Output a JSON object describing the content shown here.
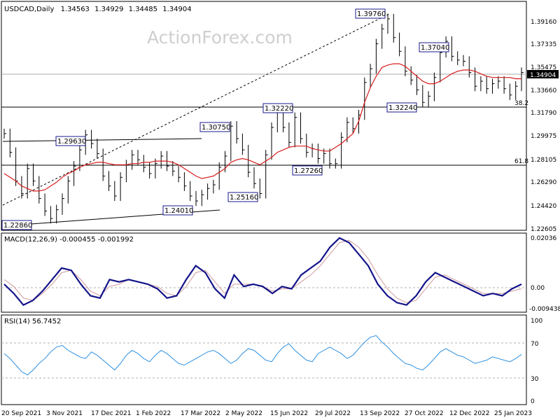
{
  "chart_data": [
    {
      "type": "candlestick",
      "title": "USDCAD,Daily",
      "ohlc_readout": [
        "1.34563",
        "1.34929",
        "1.34485",
        "1.34904"
      ],
      "watermark": "ActionForex.com",
      "ylim": [
        1.2225,
        1.406
      ],
      "y_ticks": [
        "1.39160",
        "1.37335",
        "1.35475",
        "1.33660",
        "1.31790",
        "1.29975",
        "1.28105",
        "1.26290",
        "1.24420",
        "1.22605"
      ],
      "last_price": "1.34904",
      "horizontal_levels": [
        {
          "value": 1.349,
          "color": "#a8a8a8"
        },
        {
          "value": 1.3224,
          "label": "38.2",
          "color": "#000000"
        },
        {
          "value": 1.2775,
          "label": "61.8",
          "color": "#000000"
        }
      ],
      "price_labels": [
        "1.39760",
        "1.37040",
        "1.32220",
        "1.32240",
        "1.30750",
        "1.29630",
        "1.27260",
        "1.25160",
        "1.24010",
        "1.22860"
      ],
      "ma_color": "#d81c1c",
      "close_path": [
        1.3,
        1.285,
        1.262,
        1.252,
        1.272,
        1.262,
        1.248,
        1.238,
        1.232,
        1.239,
        1.248,
        1.262,
        1.274,
        1.287,
        1.299,
        1.292,
        1.284,
        1.266,
        1.258,
        1.25,
        1.265,
        1.275,
        1.283,
        1.279,
        1.273,
        1.268,
        1.276,
        1.282,
        1.274,
        1.27,
        1.265,
        1.258,
        1.25,
        1.246,
        1.251,
        1.256,
        1.259,
        1.273,
        1.282,
        1.306,
        1.296,
        1.287,
        1.269,
        1.26,
        1.252,
        1.283,
        1.305,
        1.318,
        1.305,
        1.293,
        1.313,
        1.296,
        1.285,
        1.288,
        1.28,
        1.284,
        1.276,
        1.276,
        1.297,
        1.309,
        1.304,
        1.315,
        1.341,
        1.352,
        1.372,
        1.384,
        1.392,
        1.377,
        1.366,
        1.35,
        1.343,
        1.335,
        1.325,
        1.33,
        1.345,
        1.365,
        1.374,
        1.362,
        1.359,
        1.358,
        1.349,
        1.338,
        1.342,
        1.336,
        1.34,
        1.342,
        1.336,
        1.331,
        1.338,
        1.349
      ],
      "ma_path": [
        1.268,
        1.265,
        1.262,
        1.258,
        1.256,
        1.254,
        1.254,
        1.255,
        1.258,
        1.261,
        1.265,
        1.268,
        1.27,
        1.273,
        1.275,
        1.276,
        1.277,
        1.277,
        1.276,
        1.275,
        1.275,
        1.275,
        1.276,
        1.276,
        1.277,
        1.277,
        1.278,
        1.278,
        1.278,
        1.277,
        1.275,
        1.272,
        1.269,
        1.266,
        1.264,
        1.265,
        1.266,
        1.269,
        1.272,
        1.277,
        1.279,
        1.28,
        1.279,
        1.277,
        1.275,
        1.278,
        1.281,
        1.285,
        1.287,
        1.289,
        1.29,
        1.29,
        1.29,
        1.288,
        1.287,
        1.286,
        1.286,
        1.289,
        1.292,
        1.296,
        1.3,
        1.31,
        1.325,
        1.337,
        1.346,
        1.353,
        1.355,
        1.356,
        1.356,
        1.354,
        1.35,
        1.346,
        1.342,
        1.34,
        1.34,
        1.342,
        1.345,
        1.348,
        1.35,
        1.351,
        1.351,
        1.35,
        1.348,
        1.346,
        1.345,
        1.345,
        1.345,
        1.345,
        1.344,
        1.344
      ]
    },
    {
      "type": "line",
      "title": "MACD(12,26,9) -0.000455 -0.001992",
      "ylim": [
        -0.0115,
        0.0215
      ],
      "y_ticks": [
        "0.02036",
        "0.00",
        "-0.009438"
      ],
      "reference_line": 0.0,
      "series": [
        {
          "color": "#14148a",
          "values": [
            0.0,
            -0.004,
            -0.009,
            -0.007,
            -0.003,
            0.002,
            0.007,
            0.006,
            0.0,
            -0.005,
            -0.006,
            0.002,
            0.001,
            0.002,
            0.001,
            0.0,
            -0.002,
            -0.006,
            -0.005,
            0.002,
            0.008,
            0.005,
            -0.002,
            -0.006,
            0.004,
            -0.001,
            0.0,
            -0.001,
            -0.004,
            -0.001,
            -0.002,
            0.004,
            0.007,
            0.01,
            0.016,
            0.02,
            0.018,
            0.013,
            0.008,
            0.0,
            -0.005,
            -0.008,
            -0.009,
            -0.005,
            0.001,
            0.005,
            0.003,
            0.001,
            -0.001,
            -0.003,
            -0.005,
            -0.004,
            -0.005,
            -0.002,
            0.0
          ]
        },
        {
          "color": "#cf9b9b",
          "values": [
            0.002,
            -0.001,
            -0.006,
            -0.007,
            -0.004,
            0.0,
            0.005,
            0.006,
            0.002,
            -0.003,
            -0.005,
            -0.001,
            0.0,
            0.002,
            0.001,
            0.0,
            -0.001,
            -0.004,
            -0.005,
            -0.001,
            0.005,
            0.006,
            0.001,
            -0.004,
            0.0,
            0.0,
            0.0,
            -0.001,
            -0.003,
            -0.002,
            -0.002,
            0.001,
            0.004,
            0.008,
            0.013,
            0.018,
            0.019,
            0.016,
            0.011,
            0.004,
            -0.002,
            -0.006,
            -0.008,
            -0.007,
            -0.002,
            0.003,
            0.004,
            0.002,
            0.0,
            -0.002,
            -0.004,
            -0.004,
            -0.004,
            -0.003,
            -0.002
          ]
        }
      ]
    },
    {
      "type": "line",
      "title": "RSI(14) 56.7452",
      "ylim": [
        0,
        100
      ],
      "y_ticks": [
        "100",
        "70",
        "30",
        "0"
      ],
      "reference_lines": [
        70,
        30
      ],
      "series": [
        {
          "color": "#2b8fe0",
          "values": [
            58,
            52,
            44,
            36,
            32,
            38,
            46,
            52,
            60,
            66,
            68,
            62,
            58,
            54,
            52,
            60,
            56,
            50,
            44,
            38,
            46,
            56,
            62,
            58,
            52,
            48,
            56,
            62,
            58,
            52,
            46,
            44,
            48,
            52,
            56,
            60,
            62,
            58,
            52,
            46,
            50,
            58,
            64,
            62,
            56,
            50,
            48,
            58,
            66,
            70,
            62,
            56,
            50,
            48,
            58,
            62,
            66,
            62,
            58,
            52,
            56,
            64,
            72,
            78,
            80,
            72,
            66,
            58,
            52,
            46,
            44,
            40,
            38,
            44,
            52,
            60,
            64,
            60,
            56,
            54,
            50,
            46,
            48,
            50,
            54,
            52,
            50,
            48,
            52,
            57
          ]
        }
      ]
    }
  ],
  "x_axis": {
    "labels": [
      "20 Sep 2021",
      "3 Nov 2021",
      "17 Dec 2021",
      "1 Feb 2022",
      "17 Mar 2022",
      "2 May 2022",
      "15 Jun 2022",
      "29 Jul 2022",
      "13 Sep 2022",
      "27 Oct 2022",
      "12 Dec 2022",
      "25 Jan 2023"
    ]
  }
}
